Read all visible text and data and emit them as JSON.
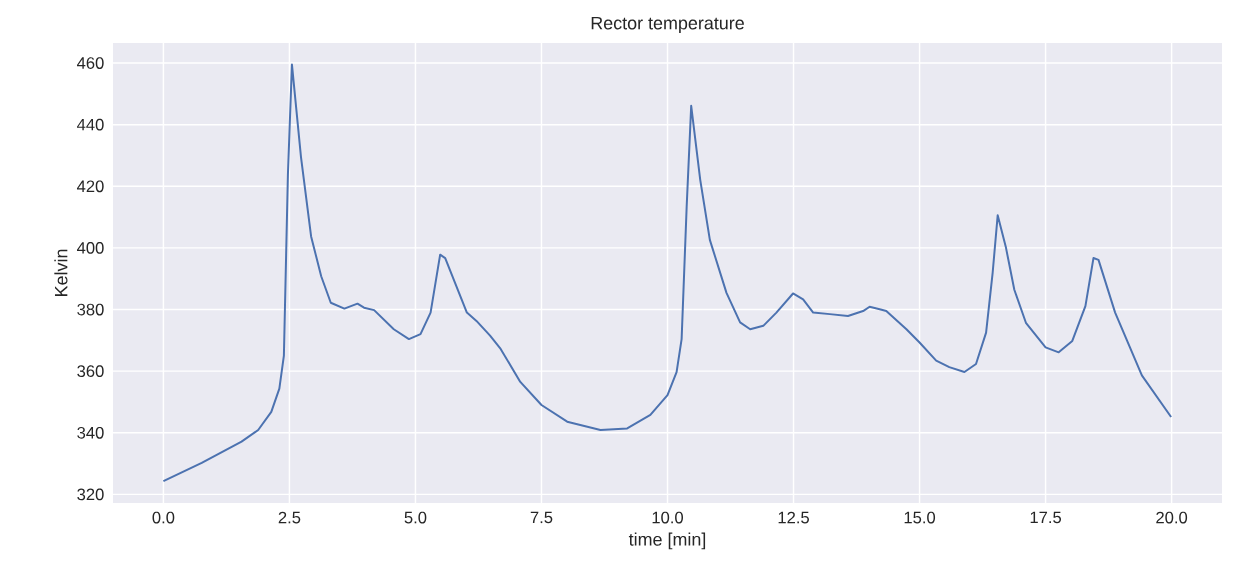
{
  "chart_data": {
    "type": "line",
    "title": "Rector temperature",
    "xlabel": "time [min]",
    "ylabel": "Kelvin",
    "x": [
      0,
      0.76,
      1.55,
      1.88,
      2.14,
      2.3,
      2.39,
      2.47,
      2.55,
      2.73,
      2.93,
      3.13,
      3.32,
      3.59,
      3.85,
      3.98,
      4.18,
      4.57,
      4.87,
      5.1,
      5.3,
      5.49,
      5.59,
      6.02,
      6.21,
      6.48,
      6.69,
      7.08,
      7.5,
      8.01,
      8.67,
      9.2,
      9.66,
      10.0,
      10.18,
      10.28,
      10.38,
      10.47,
      10.65,
      10.84,
      11.17,
      11.44,
      11.64,
      11.9,
      12.16,
      12.49,
      12.69,
      12.89,
      13.22,
      13.58,
      13.88,
      14.01,
      14.21,
      14.34,
      14.74,
      15.0,
      15.33,
      15.59,
      15.89,
      16.12,
      16.32,
      16.45,
      16.55,
      16.71,
      16.88,
      17.11,
      17.5,
      17.76,
      18.03,
      18.29,
      18.45,
      18.55,
      18.88,
      19.41,
      19.99
    ],
    "series": [
      {
        "color": "#4c72b0",
        "values": [
          324.3,
          330.2,
          337.1,
          340.9,
          346.8,
          354.3,
          365.0,
          424,
          459.5,
          429.4,
          403.7,
          390.8,
          382.2,
          380.3,
          381.9,
          380.6,
          379.8,
          373.6,
          370.4,
          372,
          379,
          397.8,
          396.7,
          379,
          376.3,
          371.5,
          367.2,
          356.5,
          349,
          343.6,
          340.9,
          341.4,
          345.8,
          352.2,
          359.7,
          370.4,
          413.3,
          446.1,
          422,
          402.6,
          385.4,
          375.8,
          373.6,
          374.7,
          379,
          385.2,
          383.3,
          379,
          378.5,
          377.9,
          379.5,
          380.9,
          380.1,
          379.5,
          373.6,
          369.3,
          363.4,
          361.3,
          359.7,
          362.3,
          372.5,
          391.9,
          410.6,
          400.4,
          386.4,
          375.7,
          367.7,
          366.1,
          369.8,
          381.1,
          396.7,
          396.1,
          379,
          358.6,
          345.1
        ]
      }
    ],
    "xlim": [
      -1,
      21
    ],
    "ylim": [
      317.2,
      466.5
    ],
    "xticks": [
      {
        "value": 0,
        "label": "0.0"
      },
      2.5,
      {
        "value": 5,
        "label": "5.0"
      },
      7.5,
      {
        "value": 10,
        "label": "10.0"
      },
      12.5,
      {
        "value": 15,
        "label": "15.0"
      },
      17.5,
      {
        "value": 20,
        "label": "20.0"
      }
    ],
    "yticks": [
      320,
      340,
      360,
      380,
      400,
      420,
      440,
      460
    ],
    "grid": true
  }
}
